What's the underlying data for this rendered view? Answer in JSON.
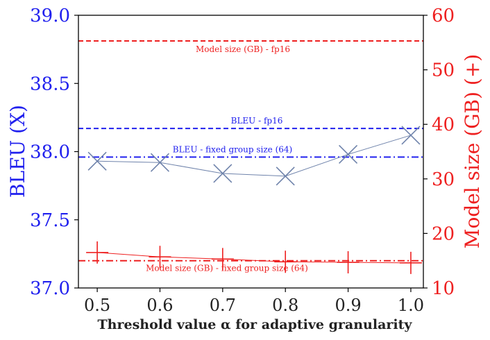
{
  "chart_data": {
    "type": "line",
    "x": [
      0.5,
      0.6,
      0.7,
      0.8,
      0.9,
      1.0
    ],
    "x_tick_labels": [
      "0.5",
      "0.6",
      "0.7",
      "0.8",
      "0.9",
      "1.0"
    ],
    "xlim": [
      0.47,
      1.02
    ],
    "xlabel": "Threshold value α for adaptive granularity",
    "left_axis": {
      "ylabel": "BLEU (X)",
      "ylim": [
        37.0,
        39.0
      ],
      "ticks": [
        37.0,
        37.5,
        38.0,
        38.5,
        39.0
      ],
      "tick_labels": [
        "37.0",
        "37.5",
        "38.0",
        "38.5",
        "39.0"
      ],
      "color": "#2020ee"
    },
    "right_axis": {
      "ylabel": "Model size (GB) (+)",
      "ylim": [
        10,
        60
      ],
      "ticks": [
        10,
        20,
        30,
        40,
        50,
        60
      ],
      "tick_labels": [
        "10",
        "20",
        "30",
        "40",
        "50",
        "60"
      ],
      "color": "#ee2020"
    },
    "series": [
      {
        "axis": "left",
        "marker": "x",
        "color": "#6f83ab",
        "values": [
          37.93,
          37.92,
          37.84,
          37.82,
          37.98,
          38.12
        ]
      },
      {
        "axis": "right",
        "marker": "+",
        "color": "#ee2020",
        "values": [
          16.5,
          15.7,
          15.3,
          14.8,
          14.7,
          14.6
        ]
      }
    ],
    "reference_lines": [
      {
        "axis": "left",
        "value": 38.17,
        "style": "dashed",
        "color": "#2020ee",
        "label": "BLEU - fp16"
      },
      {
        "axis": "left",
        "value": 37.96,
        "style": "dashdot",
        "color": "#2020ee",
        "label": "BLEU - fixed group size (64)"
      },
      {
        "axis": "right",
        "value": 55.3,
        "style": "dashed",
        "color": "#ee2020",
        "label": "Model size (GB) - fp16"
      },
      {
        "axis": "right",
        "value": 15.0,
        "style": "dashdot",
        "color": "#ee2020",
        "label": "Model size (GB) - fixed group size (64)"
      }
    ],
    "grid": false,
    "legend": "none"
  }
}
